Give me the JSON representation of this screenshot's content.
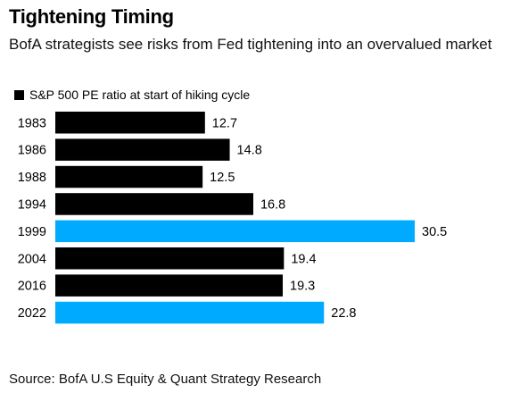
{
  "title": "Tightening Timing",
  "subtitle": "BofA strategists see risks from Fed tightening into an overvalued market",
  "source": "Source: BofA U.S Equity & Quant Strategy Research",
  "colors": {
    "default": "#000000",
    "highlight": "#00aaff"
  },
  "chart_data": {
    "type": "bar",
    "orientation": "horizontal",
    "legend": {
      "label": "S&P 500 PE ratio at start of hiking cycle",
      "placement": "top-left"
    },
    "categories": [
      "1983",
      "1986",
      "1988",
      "1994",
      "1999",
      "2004",
      "2016",
      "2022"
    ],
    "values": [
      12.7,
      14.8,
      12.5,
      16.8,
      30.5,
      19.4,
      19.3,
      22.8
    ],
    "value_labels": [
      "12.7",
      "14.8",
      "12.5",
      "16.8",
      "30.5",
      "19.4",
      "19.3",
      "22.8"
    ],
    "highlighted": [
      "1999",
      "2022"
    ],
    "xlim": [
      0,
      30.5
    ],
    "grid": false
  }
}
